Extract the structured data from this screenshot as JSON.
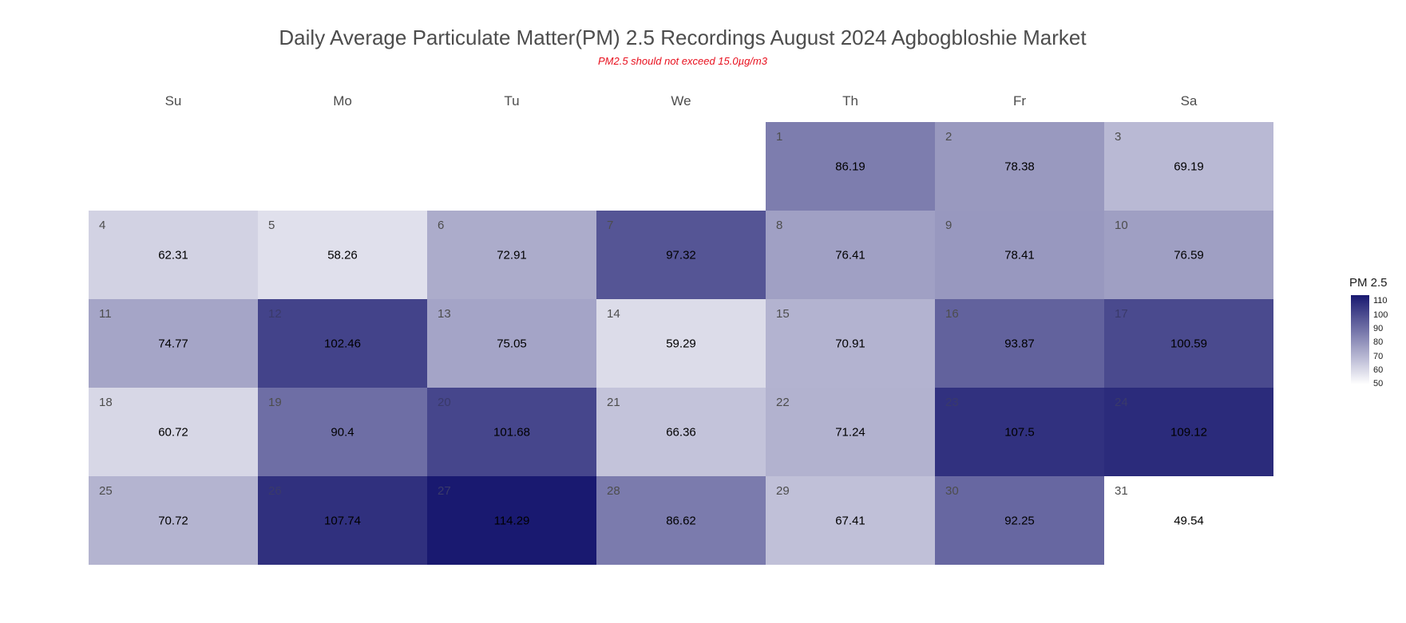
{
  "chart_data": {
    "type": "heatmap",
    "title": "Daily Average Particulate Matter(PM) 2.5 Recordings August 2024 Agbogbloshie Market",
    "subtitle": "PM2.5 should not exceed 15.0µg/m3",
    "weekdays": [
      "Su",
      "Mo",
      "Tu",
      "We",
      "Th",
      "Fr",
      "Sa"
    ],
    "first_weekday_index": 4,
    "days": [
      1,
      2,
      3,
      4,
      5,
      6,
      7,
      8,
      9,
      10,
      11,
      12,
      13,
      14,
      15,
      16,
      17,
      18,
      19,
      20,
      21,
      22,
      23,
      24,
      25,
      26,
      27,
      28,
      29,
      30,
      31
    ],
    "values": [
      86.19,
      78.38,
      69.19,
      62.31,
      58.26,
      72.91,
      97.32,
      76.41,
      78.41,
      76.59,
      74.77,
      102.46,
      75.05,
      59.29,
      70.91,
      93.87,
      100.59,
      60.72,
      90.4,
      101.68,
      66.36,
      71.24,
      107.5,
      109.12,
      70.72,
      107.74,
      114.29,
      86.62,
      67.41,
      92.25,
      49.54
    ],
    "color_scale": {
      "low": "#ffffff",
      "high": "#191970",
      "min": 49.54,
      "max": 114.29
    },
    "legend": {
      "title": "PM 2.5",
      "ticks": [
        50,
        60,
        70,
        80,
        90,
        100,
        110
      ]
    }
  }
}
